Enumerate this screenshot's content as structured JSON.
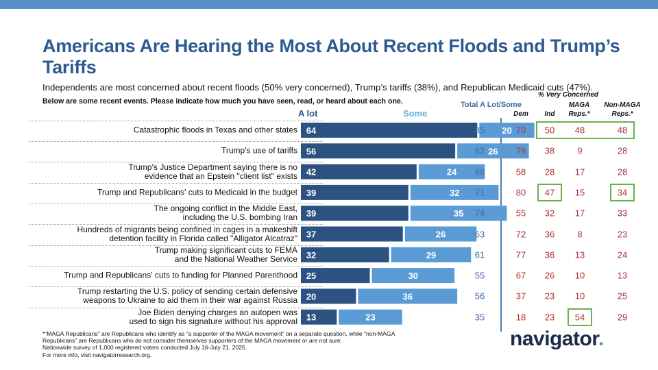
{
  "title": "Americans Are Hearing the Most About Recent Floods and Trump’s Tariffs",
  "subtitle": "Independents are most concerned about recent floods (50% very concerned), Trump’s tariffs (38%), and Republican Medicaid cuts (47%).",
  "question": "Below are some recent events. Please indicate how much you have seen, read, or heard about each one.",
  "headers": {
    "a_lot": "A lot",
    "some": "Some",
    "total": "Total A Lot/Some",
    "group": "% Very Concerned",
    "dem": "Dem",
    "ind": "Ind",
    "maga": "MAGA Reps.*",
    "nonmaga": "Non-MAGA Reps.*"
  },
  "chart_data": {
    "type": "bar",
    "orientation": "horizontal",
    "stacked": true,
    "categories": [
      "Catastrophic floods in Texas and other states",
      "Trump's use of tariffs",
      "Trump's Justice Department saying there is no evidence that an Epstein \"client list\" exists",
      "Trump and Republicans' cuts to Medicaid in the budget",
      "The ongoing conflict in the Middle East, including the U.S. bombing Iran",
      "Hundreds of migrants being confined in cages in a makeshift detention facility in Florida called \"Alligator Alcatraz\"",
      "Trump making significant cuts to FEMA and the National Weather Service",
      "Trump and Republicans' cuts to funding for Planned Parenthood",
      "Trump restarting the U.S. policy of sending certain defensive weapons to Ukraine to aid them in their war against Russia",
      "Joe Biden denying charges an autopen was used to sign his signature without his approval"
    ],
    "category_lines": [
      [
        "Catastrophic floods in Texas and other states"
      ],
      [
        "Trump's use of tariffs"
      ],
      [
        "Trump's Justice Department saying there is no",
        "evidence that an Epstein \"client list\" exists"
      ],
      [
        "Trump and Republicans' cuts to Medicaid in the budget"
      ],
      [
        "The ongoing conflict in the Middle East,",
        "including the U.S. bombing Iran"
      ],
      [
        "Hundreds of migrants being confined in cages in a makeshift",
        "detention facility in Florida called \"Alligator Alcatraz\""
      ],
      [
        "Trump making significant cuts to FEMA",
        "and the National Weather Service"
      ],
      [
        "Trump and Republicans' cuts to funding for Planned Parenthood"
      ],
      [
        "Trump restarting the U.S. policy of sending certain defensive",
        "weapons to Ukraine to aid them in their war against Russia"
      ],
      [
        "Joe Biden denying charges an autopen was",
        "used to sign his signature without his approval"
      ]
    ],
    "series": [
      {
        "name": "A lot",
        "color": "#2c5282",
        "values": [
          64,
          56,
          42,
          39,
          39,
          37,
          32,
          25,
          20,
          13
        ]
      },
      {
        "name": "Some",
        "color": "#5b9bd5",
        "values": [
          20,
          26,
          24,
          32,
          35,
          26,
          29,
          30,
          36,
          23
        ]
      }
    ],
    "total": [
      85,
      82,
      66,
      71,
      74,
      63,
      61,
      55,
      56,
      35
    ],
    "very_concerned": {
      "dem": [
        70,
        76,
        58,
        80,
        55,
        72,
        77,
        67,
        37,
        18
      ],
      "ind": [
        50,
        38,
        28,
        47,
        32,
        36,
        36,
        26,
        23,
        23
      ],
      "maga": [
        48,
        9,
        17,
        15,
        17,
        8,
        13,
        10,
        10,
        54
      ],
      "nonmaga": [
        48,
        28,
        28,
        34,
        33,
        23,
        24,
        13,
        25,
        29
      ]
    },
    "highlighted": [
      {
        "row": 0,
        "cols": [
          "ind",
          "maga",
          "nonmaga"
        ]
      },
      {
        "row": 3,
        "col": "ind"
      },
      {
        "row": 3,
        "col": "nonmaga"
      },
      {
        "row": 9,
        "col": "maga"
      }
    ],
    "xlim": [
      0,
      100
    ]
  },
  "footnote": [
    "*“MAGA Republicans” are Republicans who identify as “a supporter of the MAGA movement” on a separate question, while “non-MAGA",
    "Republicans” are Republicans who do not consider themselves supporters of the MAGA movement or are not sure.",
    "Nationwide survey of 1,000 registered voters conducted July 16-July 21, 2025.",
    "For more info, visit navigatorresearch.org."
  ],
  "brand": {
    "name": "navigator",
    "dot": "."
  },
  "colors": {
    "accent": "#2e5a8f",
    "topbar": "#5a8fc4",
    "concern": "#a33333",
    "highlight": "#6ab04c"
  }
}
